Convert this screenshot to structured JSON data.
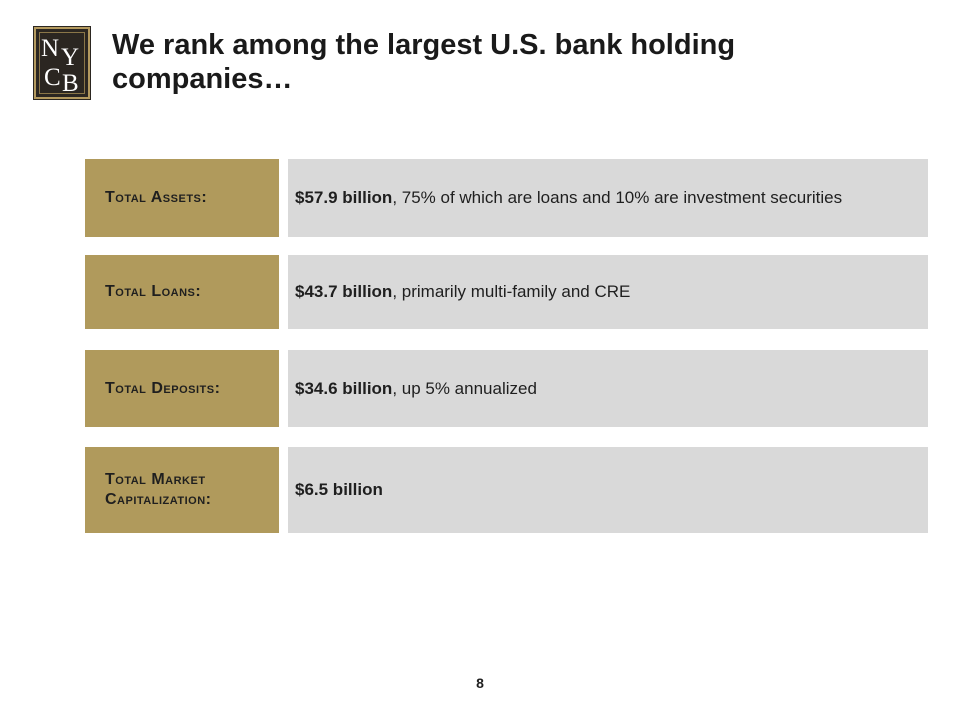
{
  "logo": {
    "letters": [
      "N",
      "Y",
      "C",
      "B"
    ]
  },
  "title": "We rank among the largest U.S. bank holding companies…",
  "rows": [
    {
      "label": "Total Assets:",
      "highlight": "$57.9 billion",
      "detail": ", 75% of which are loans and 10% are investment securities"
    },
    {
      "label": "Total Loans:",
      "highlight": "$43.7 billion",
      "detail": ", primarily multi-family and CRE"
    },
    {
      "label": "Total Deposits:",
      "highlight": "$34.6 billion",
      "detail": ", up 5% annualized"
    },
    {
      "label": "Total Market Capitalization:",
      "highlight": "$6.5 billion",
      "detail": ""
    }
  ],
  "page_number": "8",
  "colors": {
    "label_bg": "#b09a5c",
    "value_bg": "#d9d9d9",
    "logo_bg": "#2b2621"
  }
}
